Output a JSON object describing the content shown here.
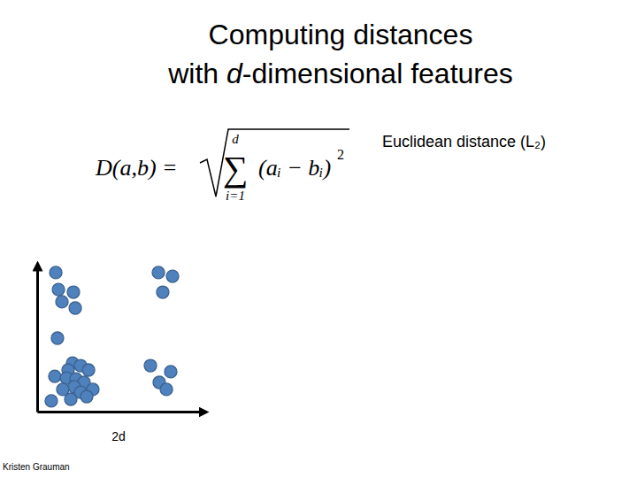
{
  "chart_data": {
    "type": "scatter",
    "title": [
      "Computing distances",
      "with d-dimensional features"
    ],
    "annotations": {
      "metric": "Euclidean distance (L₂)",
      "formula": {
        "lhs": "D(a,b) =",
        "sum": "∑",
        "sum_upper": "d",
        "sum_lower": "i=1",
        "term": "(aᵢ − bᵢ)",
        "power": "2"
      },
      "credit": "Kristen Grauman"
    },
    "x_label": "2d",
    "xlim": [
      0,
      100
    ],
    "ylim": [
      0,
      100
    ],
    "xticks": [],
    "yticks": [],
    "tick_labels": false,
    "grid": false,
    "color": "#4f81bd",
    "marker": "circle",
    "x": [
      11.2,
      12.8,
      21.8,
      14.9,
      22.9,
      12.2,
      21.3,
      26.1,
      30.9,
      18.6,
      10.6,
      17.6,
      23.4,
      28.2,
      22.3,
      15.4,
      33.5,
      26.1,
      29.8,
      20.2,
      8.5,
      72.9,
      81.4,
      75.5,
      68.1,
      80.3,
      73.4,
      77.7
    ],
    "values": [
      95.2,
      83.6,
      81.8,
      75.2,
      70.9,
      50.3,
      33.3,
      31.5,
      28.5,
      28.5,
      24.2,
      23.0,
      22.4,
      20.0,
      17.0,
      15.2,
      15.2,
      13.3,
      10.3,
      8.5,
      7.3,
      95.2,
      92.7,
      81.8,
      31.5,
      27.3,
      20.0,
      15.2
    ]
  }
}
